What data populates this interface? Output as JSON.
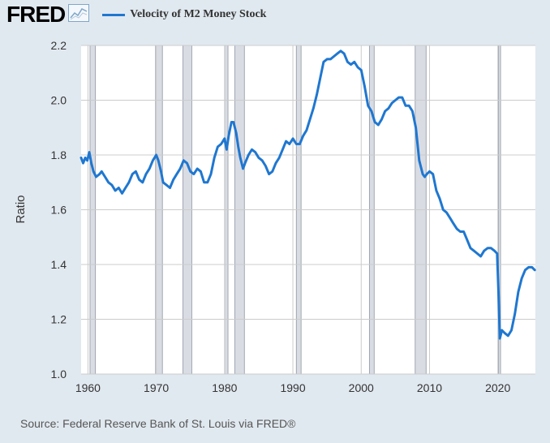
{
  "header": {
    "logo_text": "FRED",
    "legend_label": "Velocity of M2 Money Stock"
  },
  "source": "Source: Federal Reserve Bank of St. Louis via FRED®",
  "colors": {
    "series": "#1f77d0",
    "background": "#e1e9f0",
    "plot_background": "#ffffff",
    "recession": "#d9dce3",
    "grid": "#cccccc"
  },
  "icons": [
    "fred-logo-chart-icon"
  ],
  "chart_data": {
    "type": "line",
    "title": "",
    "xlabel": "",
    "ylabel": "Ratio",
    "xlim": [
      1959,
      2025.5
    ],
    "ylim": [
      1.0,
      2.2
    ],
    "x_ticks": [
      1960,
      1970,
      1980,
      1990,
      2000,
      2010,
      2020
    ],
    "x_tick_labels": [
      "1960",
      "1970",
      "1980",
      "1990",
      "2000",
      "2010",
      "2020"
    ],
    "y_ticks": [
      1.0,
      1.2,
      1.4,
      1.6,
      1.8,
      2.0,
      2.2
    ],
    "y_tick_labels": [
      "1.0",
      "1.2",
      "1.4",
      "1.6",
      "1.8",
      "2.0",
      "2.2"
    ],
    "grid": true,
    "legend_position": "top",
    "recessions": [
      [
        1960.3,
        1961.1
      ],
      [
        1969.9,
        1970.9
      ],
      [
        1973.9,
        1975.2
      ],
      [
        1980.0,
        1980.5
      ],
      [
        1981.5,
        1982.9
      ],
      [
        1990.5,
        1991.2
      ],
      [
        2001.2,
        2001.9
      ],
      [
        2007.9,
        2009.5
      ],
      [
        2020.1,
        2020.4
      ]
    ],
    "series": [
      {
        "x": [
          1959.0,
          1959.3,
          1959.6,
          1959.9,
          1960.2,
          1960.5,
          1960.8,
          1961.2,
          1961.7,
          1962.0,
          1962.5,
          1963.0,
          1963.5,
          1964.0,
          1964.5,
          1965.0,
          1965.5,
          1966.0,
          1966.5,
          1967.0,
          1967.5,
          1968.0,
          1968.5,
          1969.0,
          1969.5,
          1970.0,
          1970.3,
          1970.7,
          1971.0,
          1971.5,
          1972.0,
          1972.5,
          1973.0,
          1973.5,
          1974.0,
          1974.5,
          1975.0,
          1975.5,
          1976.0,
          1976.5,
          1977.0,
          1977.5,
          1978.0,
          1978.5,
          1979.0,
          1979.5,
          1980.0,
          1980.3,
          1980.6,
          1981.0,
          1981.3,
          1981.7,
          1982.0,
          1982.3,
          1982.7,
          1983.0,
          1983.5,
          1984.0,
          1984.5,
          1985.0,
          1985.5,
          1986.0,
          1986.5,
          1987.0,
          1987.5,
          1988.0,
          1988.5,
          1989.0,
          1989.5,
          1990.0,
          1990.5,
          1991.0,
          1991.5,
          1992.0,
          1992.5,
          1993.0,
          1993.5,
          1994.0,
          1994.5,
          1995.0,
          1995.5,
          1996.0,
          1996.5,
          1997.0,
          1997.5,
          1998.0,
          1998.5,
          1999.0,
          1999.5,
          2000.0,
          2000.5,
          2001.0,
          2001.5,
          2002.0,
          2002.5,
          2003.0,
          2003.5,
          2004.0,
          2004.5,
          2005.0,
          2005.5,
          2006.0,
          2006.5,
          2007.0,
          2007.5,
          2008.0,
          2008.5,
          2009.0,
          2009.3,
          2009.6,
          2010.0,
          2010.5,
          2011.0,
          2011.5,
          2012.0,
          2012.5,
          2013.0,
          2013.5,
          2014.0,
          2014.5,
          2015.0,
          2015.5,
          2016.0,
          2016.5,
          2017.0,
          2017.5,
          2018.0,
          2018.5,
          2019.0,
          2019.5,
          2019.9,
          2020.1,
          2020.3,
          2020.6,
          2021.0,
          2021.5,
          2022.0,
          2022.5,
          2023.0,
          2023.5,
          2024.0,
          2024.5,
          2025.0,
          2025.4
        ],
        "values": [
          1.79,
          1.77,
          1.79,
          1.78,
          1.81,
          1.77,
          1.74,
          1.72,
          1.73,
          1.74,
          1.72,
          1.7,
          1.69,
          1.67,
          1.68,
          1.66,
          1.68,
          1.7,
          1.73,
          1.74,
          1.71,
          1.7,
          1.73,
          1.75,
          1.78,
          1.8,
          1.78,
          1.74,
          1.7,
          1.69,
          1.68,
          1.71,
          1.73,
          1.75,
          1.78,
          1.77,
          1.74,
          1.73,
          1.75,
          1.74,
          1.7,
          1.7,
          1.73,
          1.79,
          1.83,
          1.84,
          1.86,
          1.82,
          1.87,
          1.92,
          1.92,
          1.88,
          1.83,
          1.79,
          1.75,
          1.77,
          1.8,
          1.82,
          1.81,
          1.79,
          1.78,
          1.76,
          1.73,
          1.74,
          1.77,
          1.79,
          1.82,
          1.85,
          1.84,
          1.86,
          1.84,
          1.84,
          1.87,
          1.89,
          1.93,
          1.97,
          2.02,
          2.08,
          2.14,
          2.15,
          2.15,
          2.16,
          2.17,
          2.18,
          2.17,
          2.14,
          2.13,
          2.14,
          2.12,
          2.11,
          2.05,
          1.98,
          1.96,
          1.92,
          1.91,
          1.93,
          1.96,
          1.97,
          1.99,
          2.0,
          2.01,
          2.01,
          1.98,
          1.98,
          1.96,
          1.9,
          1.78,
          1.73,
          1.72,
          1.73,
          1.74,
          1.73,
          1.67,
          1.64,
          1.6,
          1.59,
          1.57,
          1.55,
          1.53,
          1.52,
          1.52,
          1.49,
          1.46,
          1.45,
          1.44,
          1.43,
          1.45,
          1.46,
          1.46,
          1.45,
          1.44,
          1.3,
          1.13,
          1.16,
          1.15,
          1.14,
          1.16,
          1.22,
          1.3,
          1.35,
          1.38,
          1.39,
          1.39,
          1.38
        ]
      }
    ]
  }
}
